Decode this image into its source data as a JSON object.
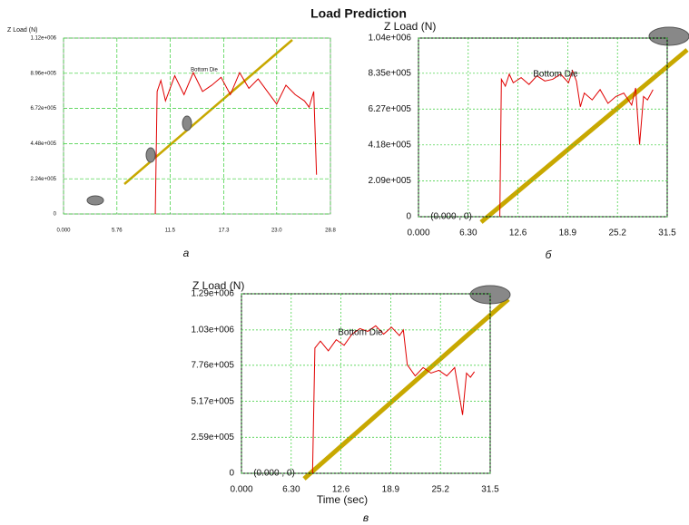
{
  "title": "Load Prediction",
  "chart_data": [
    {
      "type": "line",
      "ylabel": "Z Load (N)",
      "caption": "a",
      "x": [
        9.9,
        10.1,
        10.5,
        11,
        12,
        13,
        14,
        15,
        16,
        17,
        18,
        19,
        20,
        21,
        22,
        23,
        24,
        25,
        26,
        26.5,
        27,
        27.3
      ],
      "series": [
        {
          "color": "#e00000",
          "values": [
            0,
            780000,
            850000,
            720000,
            880000,
            760000,
            900000,
            780000,
            820000,
            870000,
            760000,
            900000,
            800000,
            860000,
            780000,
            700000,
            820000,
            760000,
            720000,
            680000,
            780000,
            250000
          ]
        }
      ],
      "xlim": [
        0,
        28.8
      ],
      "ylim": [
        0,
        1120000
      ],
      "xticks": [
        {
          "value": 0,
          "label": "0.000"
        },
        5.76,
        11.5,
        17.3,
        {
          "value": 23,
          "label": "23.0"
        },
        28.8
      ],
      "yticks": [
        0,
        {
          "value": 224000,
          "label": "2.24e+005"
        },
        {
          "value": 448000,
          "label": "4.48e+005"
        },
        {
          "value": 672000,
          "label": "6.72e+005"
        },
        {
          "value": 896000,
          "label": "8.96e+005"
        },
        {
          "value": 1120000,
          "label": "1.12e+006"
        }
      ],
      "annotations": [
        "Bottom Die"
      ],
      "grid": true
    },
    {
      "type": "line",
      "ylabel": "Z Load (N)",
      "caption": "б",
      "x": [
        10.3,
        10.5,
        11,
        11.5,
        12,
        13,
        14,
        15,
        16,
        17,
        18,
        19,
        19.5,
        20,
        20.5,
        21,
        22,
        23,
        24,
        25,
        26,
        27,
        27.5,
        28,
        28.5,
        29,
        29.7
      ],
      "series": [
        {
          "color": "#e00000",
          "values": [
            0,
            800000,
            760000,
            830000,
            780000,
            810000,
            770000,
            820000,
            790000,
            800000,
            830000,
            780000,
            850000,
            790000,
            640000,
            720000,
            680000,
            740000,
            660000,
            700000,
            720000,
            650000,
            750000,
            420000,
            700000,
            680000,
            740000
          ]
        }
      ],
      "xlim": [
        0,
        31.5
      ],
      "ylim": [
        0,
        1040000
      ],
      "xticks": [
        {
          "value": 0,
          "label": "0.000"
        },
        {
          "value": 6.3,
          "label": "6.30"
        },
        12.6,
        18.9,
        25.2,
        31.5
      ],
      "yticks": [
        0,
        {
          "value": 209000,
          "label": "2.09e+005"
        },
        {
          "value": 418000,
          "label": "4.18e+005"
        },
        {
          "value": 627000,
          "label": "6.27e+005"
        },
        {
          "value": 835000,
          "label": "8.35e+005"
        },
        {
          "value": 1040000,
          "label": "1.04e+006"
        }
      ],
      "annotations": [
        "Bottom Die",
        "(0.000 , 0)"
      ],
      "grid": true
    },
    {
      "type": "line",
      "ylabel": "Z Load (N)",
      "xlabel": "Time (sec)",
      "caption": "в",
      "x": [
        9,
        9.3,
        10,
        11,
        12,
        13,
        14,
        15,
        16,
        17,
        18,
        19,
        20,
        20.5,
        21,
        22,
        23,
        24,
        25,
        26,
        27,
        28,
        28.5,
        29,
        29.5
      ],
      "series": [
        {
          "color": "#e00000",
          "values": [
            0,
            900000,
            950000,
            880000,
            960000,
            920000,
            1000000,
            1040000,
            1020000,
            1060000,
            1000000,
            1050000,
            990000,
            1030000,
            780000,
            700000,
            760000,
            720000,
            740000,
            700000,
            760000,
            420000,
            720000,
            690000,
            730000
          ]
        }
      ],
      "xlim": [
        0,
        31.5
      ],
      "ylim": [
        0,
        1290000
      ],
      "xticks": [
        {
          "value": 0,
          "label": "0.000"
        },
        {
          "value": 6.3,
          "label": "6.30"
        },
        12.6,
        18.9,
        25.2,
        31.5
      ],
      "yticks": [
        0,
        {
          "value": 259000,
          "label": "2.59e+005"
        },
        {
          "value": 517000,
          "label": "5.17e+005"
        },
        {
          "value": 776000,
          "label": "7.76e+005"
        },
        {
          "value": 1030000,
          "label": "1.03e+006"
        },
        {
          "value": 1290000,
          "label": "1.29e+006"
        }
      ],
      "annotations": [
        "Bottom Die",
        "(0.000 , 0)"
      ],
      "grid": true
    }
  ]
}
